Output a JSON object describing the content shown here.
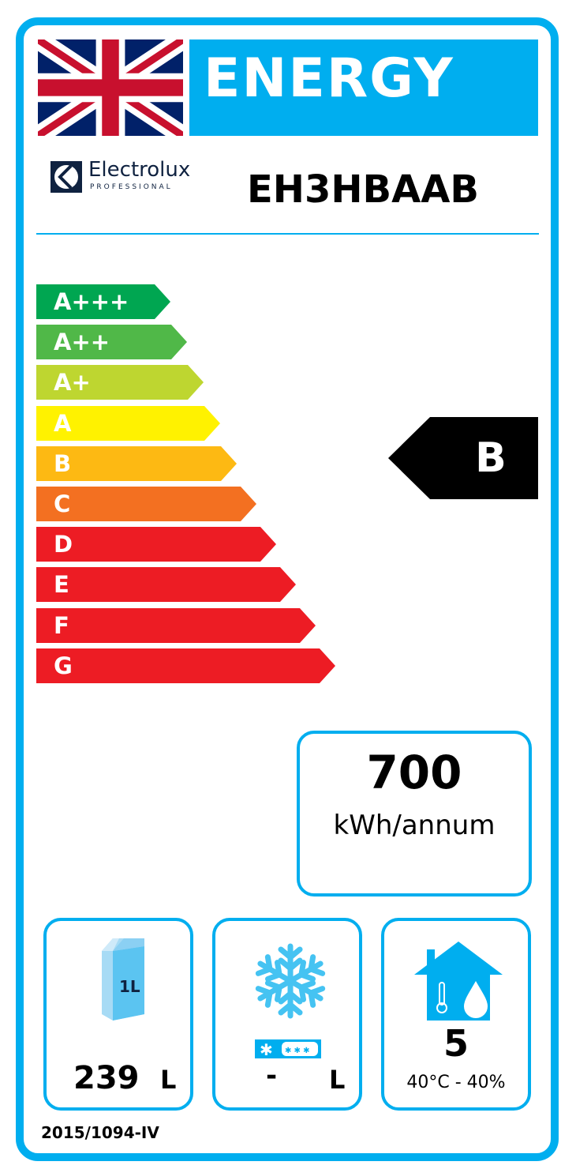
{
  "header": {
    "title": "ENERGY",
    "flag_icon": "union-jack-flag",
    "brand": "Electrolux",
    "brand_sub": "PROFESSIONAL",
    "model": "EH3HBAAB"
  },
  "scale": [
    {
      "label": "A+++",
      "color": "#00A651"
    },
    {
      "label": "A++",
      "color": "#50B848"
    },
    {
      "label": "A+",
      "color": "#BED630"
    },
    {
      "label": "A",
      "color": "#FFF200"
    },
    {
      "label": "B",
      "color": "#FDB913"
    },
    {
      "label": "C",
      "color": "#F37021"
    },
    {
      "label": "D",
      "color": "#ED1C24"
    },
    {
      "label": "E",
      "color": "#ED1C24"
    },
    {
      "label": "F",
      "color": "#ED1C24"
    },
    {
      "label": "G",
      "color": "#ED1C24"
    }
  ],
  "rating": {
    "class": "B",
    "color": "#000000"
  },
  "consumption": {
    "value": "700",
    "unit": "kWh/annum"
  },
  "chilled": {
    "icon": "milk-carton-icon",
    "carton_label": "1L",
    "value": "239",
    "unit": "L"
  },
  "frozen": {
    "icon": "snowflake-icon",
    "value": "-",
    "unit": "L"
  },
  "climate": {
    "icon": "house-climate-icon",
    "class": "5",
    "conditions": "40°C - 40%"
  },
  "footer": {
    "regulation": "2015/1094-IV"
  },
  "accent": "#00AEEF"
}
